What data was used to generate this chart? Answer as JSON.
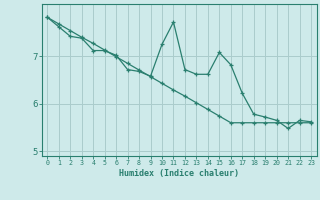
{
  "xlabel": "Humidex (Indice chaleur)",
  "background_color": "#ceeaea",
  "grid_color": "#aacccc",
  "line_color": "#2a7f6f",
  "marker": "+",
  "x_data": [
    0,
    1,
    2,
    3,
    4,
    5,
    6,
    7,
    8,
    9,
    10,
    11,
    12,
    13,
    14,
    15,
    16,
    17,
    18,
    19,
    20,
    21,
    22,
    23
  ],
  "line1_y": [
    7.82,
    7.62,
    7.42,
    7.38,
    7.12,
    7.12,
    7.02,
    6.72,
    6.68,
    6.58,
    7.25,
    7.72,
    6.72,
    6.62,
    6.62,
    7.08,
    6.82,
    6.22,
    5.78,
    5.72,
    5.65,
    5.48,
    5.65,
    5.62
  ],
  "line2_y": [
    7.82,
    7.68,
    7.54,
    7.4,
    7.27,
    7.13,
    6.99,
    6.85,
    6.71,
    6.57,
    6.43,
    6.29,
    6.16,
    6.02,
    5.88,
    5.74,
    5.6,
    5.6,
    5.6,
    5.6,
    5.6,
    5.6,
    5.6,
    5.6
  ],
  "ylim": [
    4.9,
    8.1
  ],
  "xlim": [
    -0.5,
    23.5
  ],
  "yticks": [
    5,
    6,
    7
  ],
  "xticks": [
    0,
    1,
    2,
    3,
    4,
    5,
    6,
    7,
    8,
    9,
    10,
    11,
    12,
    13,
    14,
    15,
    16,
    17,
    18,
    19,
    20,
    21,
    22,
    23
  ]
}
